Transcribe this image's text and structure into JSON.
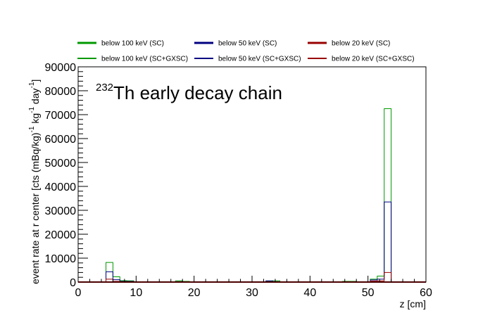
{
  "chart_data": {
    "type": "histogram",
    "title_superscript": "232",
    "title_main": "Th early decay chain",
    "xlabel": "z [cm]",
    "ylabel_parts": {
      "a": "event rate at r center [cts (mBq/kg)",
      "a_sup": "-1",
      "b": " kg",
      "b_sup": "-1",
      "c": " day",
      "c_sup": "-1",
      "d": "]"
    },
    "xlim": [
      0,
      60
    ],
    "ylim": [
      0,
      90000
    ],
    "xticks": [
      0,
      10,
      20,
      30,
      40,
      50,
      60
    ],
    "xtick_labels": [
      "0",
      "10",
      "20",
      "30",
      "40",
      "50",
      "60"
    ],
    "yticks": [
      0,
      10000,
      20000,
      30000,
      40000,
      50000,
      60000,
      70000,
      80000,
      90000
    ],
    "ytick_labels": [
      "0",
      "10000",
      "20000",
      "30000",
      "40000",
      "50000",
      "60000",
      "70000",
      "80000",
      "90000"
    ],
    "bin_edges": [
      0,
      1.2,
      2.4,
      3.6,
      4.8,
      6.0,
      7.2,
      8.4,
      9.6,
      10.8,
      12.0,
      13.2,
      14.4,
      15.6,
      16.8,
      18.0,
      19.2,
      20.4,
      21.6,
      22.8,
      24.0,
      25.2,
      26.4,
      27.6,
      28.8,
      30.0,
      31.2,
      32.4,
      33.6,
      34.8,
      36.0,
      37.2,
      38.4,
      39.6,
      40.8,
      42.0,
      43.2,
      44.4,
      45.6,
      46.8,
      48.0,
      49.2,
      50.4,
      51.6,
      52.8,
      54.0,
      55.2,
      56.4,
      57.6,
      58.8,
      60.0
    ],
    "series": [
      {
        "name": "below 100 keV (SC)",
        "color": "#009900",
        "width": 2,
        "legend_row": 0,
        "legend_col": 0,
        "values": [
          0,
          0,
          0,
          0,
          0,
          0,
          0,
          0,
          0,
          0,
          0,
          0,
          0,
          0,
          0,
          0,
          0,
          0,
          0,
          0,
          0,
          0,
          0,
          0,
          0,
          0,
          0,
          0,
          0,
          0,
          0,
          0,
          0,
          0,
          0,
          0,
          0,
          0,
          0,
          0,
          0,
          0,
          0,
          0,
          0,
          0,
          0,
          0,
          0,
          0
        ]
      },
      {
        "name": "below 50 keV (SC)",
        "color": "#000080",
        "width": 2,
        "legend_row": 0,
        "legend_col": 1,
        "values": [
          0,
          0,
          0,
          0,
          0,
          0,
          0,
          0,
          0,
          0,
          0,
          0,
          0,
          0,
          0,
          0,
          0,
          0,
          0,
          0,
          0,
          0,
          0,
          0,
          0,
          0,
          0,
          0,
          0,
          0,
          0,
          0,
          0,
          0,
          0,
          0,
          0,
          0,
          0,
          0,
          0,
          0,
          0,
          0,
          0,
          0,
          0,
          0,
          0,
          0
        ]
      },
      {
        "name": "below 20 keV (SC)",
        "color": "#990000",
        "width": 2,
        "legend_row": 0,
        "legend_col": 2,
        "values": [
          0,
          0,
          0,
          0,
          0,
          0,
          0,
          0,
          0,
          0,
          0,
          0,
          0,
          0,
          0,
          0,
          0,
          0,
          0,
          0,
          0,
          0,
          0,
          0,
          0,
          0,
          0,
          0,
          0,
          0,
          0,
          0,
          0,
          0,
          0,
          0,
          0,
          0,
          0,
          0,
          0,
          0,
          0,
          0,
          0,
          0,
          0,
          0,
          0,
          0
        ]
      },
      {
        "name": "below 100 keV (SC+GXSC)",
        "color": "#009900",
        "width": 1,
        "legend_row": 1,
        "legend_col": 0,
        "values": [
          0,
          0,
          0,
          0,
          8200,
          2200,
          600,
          500,
          0,
          0,
          0,
          0,
          0,
          0,
          500,
          300,
          0,
          0,
          0,
          0,
          0,
          0,
          0,
          0,
          0,
          0,
          0,
          300,
          500,
          0,
          0,
          0,
          0,
          0,
          0,
          0,
          0,
          0,
          300,
          300,
          0,
          0,
          1200,
          2500,
          72500,
          0,
          0,
          0,
          0,
          0
        ]
      },
      {
        "name": "below 50 keV (SC+GXSC)",
        "color": "#000080",
        "width": 1,
        "legend_row": 1,
        "legend_col": 1,
        "values": [
          0,
          0,
          0,
          0,
          4300,
          1000,
          300,
          300,
          0,
          0,
          0,
          0,
          0,
          0,
          200,
          100,
          0,
          0,
          0,
          0,
          0,
          0,
          0,
          0,
          0,
          0,
          0,
          500,
          200,
          0,
          0,
          0,
          0,
          0,
          0,
          0,
          0,
          0,
          100,
          100,
          0,
          0,
          900,
          1200,
          33500,
          0,
          0,
          0,
          0,
          0
        ]
      },
      {
        "name": "below 20 keV (SC+GXSC)",
        "color": "#990000",
        "width": 1,
        "legend_row": 1,
        "legend_col": 2,
        "values": [
          0,
          0,
          0,
          0,
          1200,
          300,
          100,
          100,
          0,
          0,
          0,
          0,
          0,
          0,
          0,
          0,
          0,
          0,
          0,
          0,
          0,
          0,
          0,
          0,
          0,
          0,
          0,
          100,
          0,
          0,
          0,
          0,
          0,
          0,
          0,
          0,
          0,
          0,
          0,
          0,
          0,
          0,
          400,
          500,
          4000,
          0,
          0,
          0,
          0,
          0
        ]
      }
    ]
  }
}
